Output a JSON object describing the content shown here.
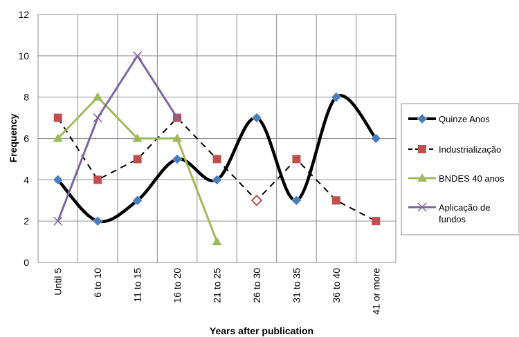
{
  "chart_data": {
    "type": "line",
    "categories": [
      "Until 5",
      "6 to 10",
      "11 to 15",
      "16 to 20",
      "21 to 25",
      "26 to 30",
      "31 to 35",
      "36 to 40",
      "41 or more"
    ],
    "xlabel": "Years after publication",
    "ylabel": "Frequency",
    "ylim": [
      0,
      12
    ],
    "yticks": [
      0,
      2,
      4,
      6,
      8,
      10,
      12
    ],
    "grid": true,
    "legend_position": "right",
    "series": [
      {
        "name": "Quinze Anos",
        "values": [
          4,
          2,
          3,
          5,
          4,
          7,
          3,
          8,
          6
        ],
        "color": "#000000",
        "marker": "diamond",
        "marker_color": "#4a7ebb",
        "line_style": "solid-smooth"
      },
      {
        "name": "Industrialização",
        "values": [
          7,
          4,
          5,
          7,
          5,
          3,
          5,
          3,
          2
        ],
        "color": "#000000",
        "marker": "square",
        "marker_color": "#c0504d",
        "line_style": "dashed",
        "hollow_points": [
          5
        ]
      },
      {
        "name": "BNDES 40 anos",
        "values": [
          6,
          8,
          6,
          6,
          1,
          null,
          null,
          null,
          null
        ],
        "color": "#9bbb59",
        "marker": "triangle",
        "marker_color": "#9bbb59",
        "line_style": "solid"
      },
      {
        "name": "Aplicação de fundos",
        "values": [
          2,
          7,
          10,
          7,
          null,
          null,
          null,
          null,
          null
        ],
        "color": "#8064a2",
        "marker": "x",
        "marker_color": "#8064a2",
        "line_style": "solid"
      }
    ]
  }
}
